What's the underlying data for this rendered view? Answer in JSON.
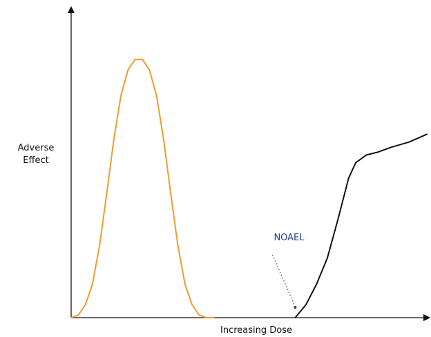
{
  "chart_data": {
    "type": "line",
    "xlabel": "Increasing Dose",
    "ylabel_lines": [
      "Adverse",
      "Effect"
    ],
    "axis_ticks": false,
    "grid": false,
    "xlim": [
      0,
      100
    ],
    "ylim": [
      0,
      100
    ],
    "series": [
      {
        "color": "#f39a2c",
        "x": [
          0,
          2,
          4,
          6,
          8,
          10,
          12,
          14,
          16,
          18,
          20,
          22,
          24,
          26,
          28,
          30,
          32,
          34,
          36,
          38,
          40
        ],
        "y": [
          0,
          1,
          5,
          13,
          28,
          48,
          69,
          86,
          96,
          100,
          100,
          96,
          86,
          69,
          48,
          28,
          13,
          5,
          1,
          0,
          0
        ]
      },
      {
        "color": "#111111",
        "x": [
          63,
          66,
          69,
          72,
          75,
          78,
          80,
          83,
          86,
          90,
          95,
          100
        ],
        "y": [
          0,
          5,
          13,
          23,
          38,
          54,
          60,
          63,
          64,
          66,
          68,
          71
        ]
      }
    ],
    "annotations": [
      {
        "text": "NOAEL",
        "color": "#1f3f8f",
        "point": [
          63,
          4
        ],
        "style": "dotted-pointer"
      }
    ]
  }
}
